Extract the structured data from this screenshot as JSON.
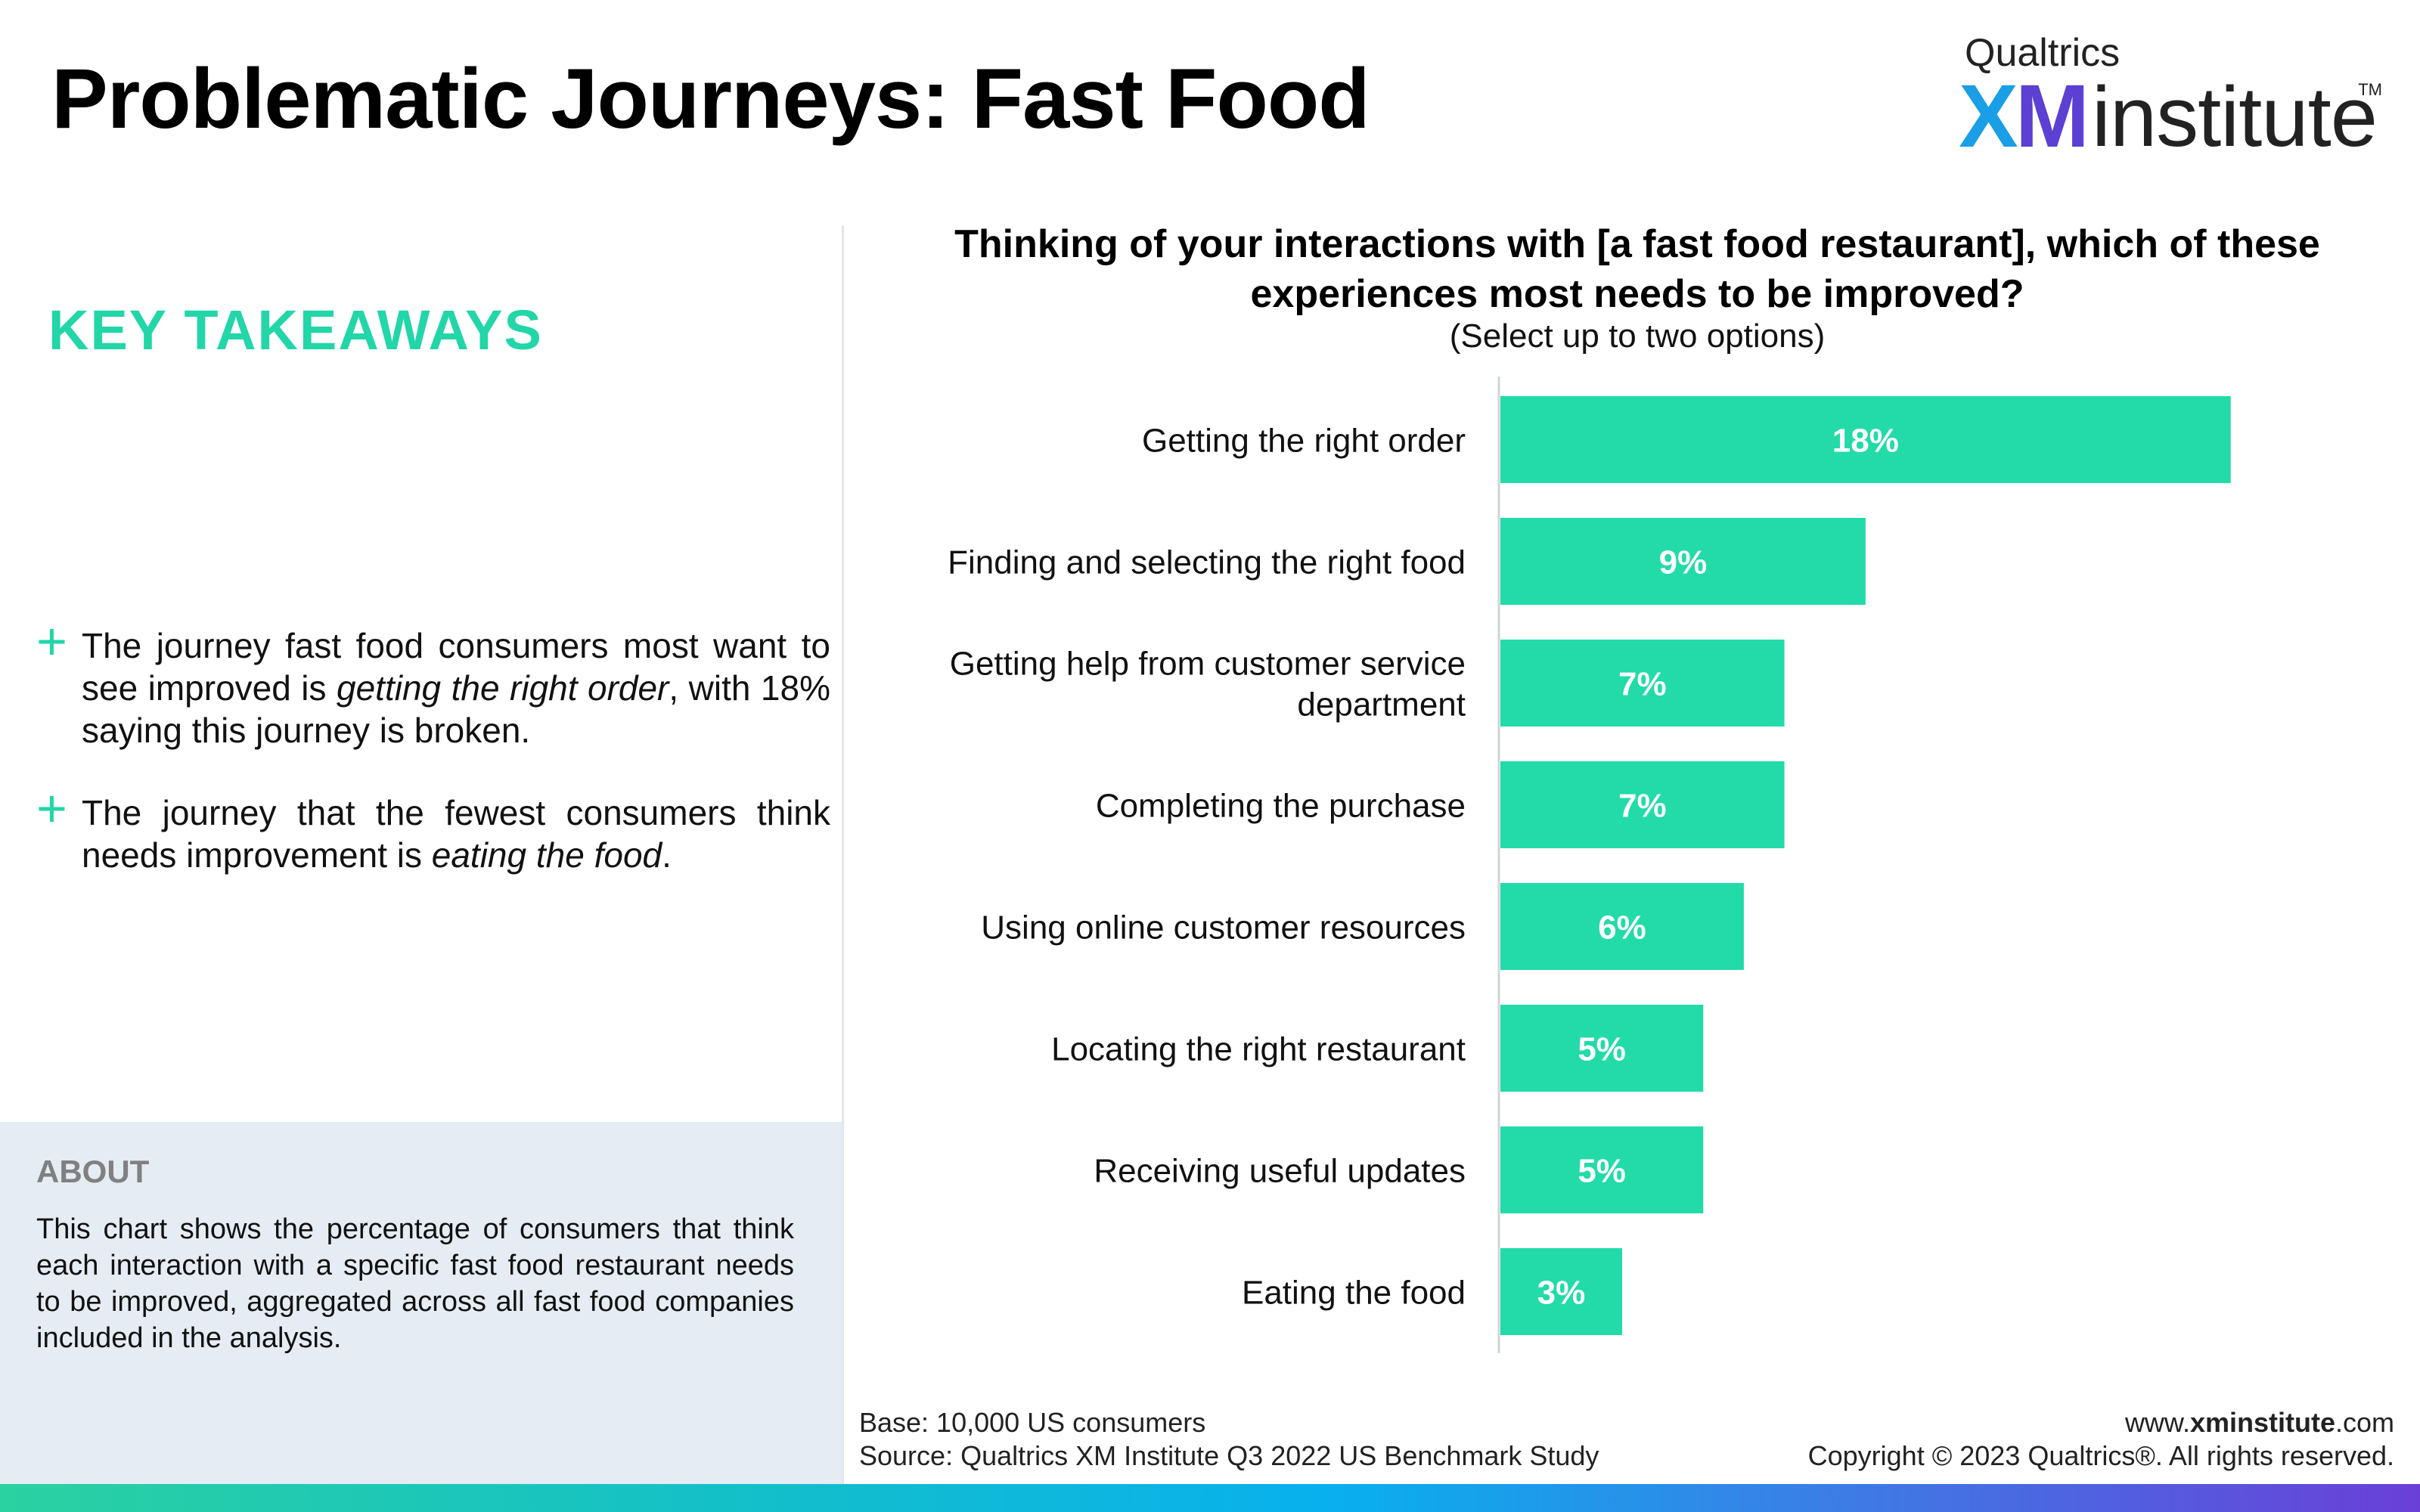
{
  "header": {
    "title": "Problematic Journeys: Fast Food"
  },
  "logo": {
    "brand": "Qualtrics",
    "xm_x": "X",
    "xm_m": "M",
    "institute": "institute",
    "tm": "TM"
  },
  "takeaways": {
    "heading": "KEY TAKEAWAYS",
    "bullets": [
      {
        "before": "The journey fast food consumers most want to see improved is ",
        "emphasis": "getting the right order",
        "after": ", with 18% saying this journey is broken."
      },
      {
        "before": "The journey that the fewest consumers think needs improvement is ",
        "emphasis": "eating the food",
        "after": "."
      }
    ]
  },
  "about": {
    "heading": "ABOUT",
    "text": "This chart shows the percentage of consumers that think each interaction with a specific fast food restaurant needs to be improved, aggregated across all fast food companies included in the analysis."
  },
  "chart_data": {
    "type": "bar",
    "orientation": "horizontal",
    "title": "Thinking of your interactions with [a fast food restaurant], which of these experiences most needs to be improved?",
    "subtitle": "(Select up to two options)",
    "categories": [
      [
        "Getting the right order"
      ],
      [
        "Finding and selecting the right food"
      ],
      [
        "Getting help from customer service",
        "department"
      ],
      [
        "Completing the purchase"
      ],
      [
        "Using online customer resources"
      ],
      [
        "Locating the right restaurant"
      ],
      [
        "Receiving useful updates"
      ],
      [
        "Eating the food"
      ]
    ],
    "values": [
      18,
      9,
      7,
      7,
      6,
      5,
      5,
      3
    ],
    "value_labels": [
      "18%",
      "9%",
      "7%",
      "7%",
      "6%",
      "5%",
      "5%",
      "3%"
    ],
    "xlim": [
      0,
      20
    ],
    "grid": false,
    "bar_color": "#22dba9",
    "label_color": "#ffffff"
  },
  "footer": {
    "base": "Base: 10,000 US consumers",
    "source": "Source: Qualtrics XM Institute Q3 2022 US Benchmark Study",
    "url_prefix": "www.",
    "url_bold": "xminstitute",
    "url_suffix": ".com",
    "copyright": "Copyright © 2023 Qualtrics®. All rights reserved."
  }
}
